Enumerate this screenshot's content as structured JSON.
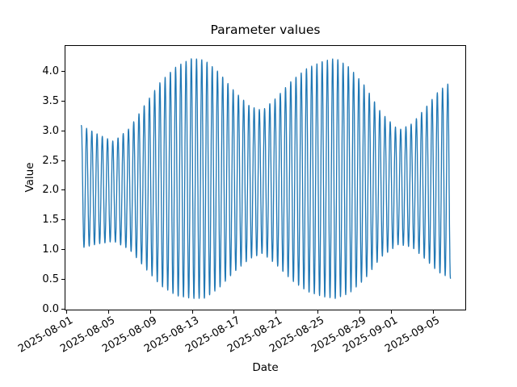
{
  "chart_data": {
    "type": "line",
    "title": "Parameter values",
    "xlabel": "Date",
    "ylabel": "Value",
    "grid": false,
    "legend": false,
    "line_color": "#1f77b4",
    "background_color": "#ffffff",
    "x_axis": {
      "kind": "date",
      "epoch_date": "2025-08-01",
      "xlim_days": [
        -0.2,
        38.15
      ],
      "tick_label_rotation_deg": 30,
      "ticks": [
        {
          "day": 0,
          "label": "2025-08-01"
        },
        {
          "day": 4,
          "label": "2025-08-05"
        },
        {
          "day": 8,
          "label": "2025-08-09"
        },
        {
          "day": 12,
          "label": "2025-08-13"
        },
        {
          "day": 16,
          "label": "2025-08-17"
        },
        {
          "day": 20,
          "label": "2025-08-21"
        },
        {
          "day": 24,
          "label": "2025-08-25"
        },
        {
          "day": 28,
          "label": "2025-08-29"
        },
        {
          "day": 31,
          "label": "2025-09-01"
        },
        {
          "day": 35,
          "label": "2025-09-05"
        }
      ]
    },
    "y_axis": {
      "ylim": [
        -0.02,
        4.44
      ],
      "ticks": [
        {
          "value": 0.0,
          "label": "0.0"
        },
        {
          "value": 0.5,
          "label": "0.5"
        },
        {
          "value": 1.0,
          "label": "1.0"
        },
        {
          "value": 1.5,
          "label": "1.5"
        },
        {
          "value": 2.0,
          "label": "2.0"
        },
        {
          "value": 2.5,
          "label": "2.5"
        },
        {
          "value": 3.0,
          "label": "3.0"
        },
        {
          "value": 3.5,
          "label": "3.5"
        },
        {
          "value": 4.0,
          "label": "4.0"
        }
      ]
    },
    "series": [
      {
        "name": "parameter values",
        "model": "amplitude-modulated sine: value(t) = center(t) + amp(t) * cos(2*pi*(t - t_start)/carrier_period), t in days after 2025-08-01",
        "t_start_day": 1.4,
        "t_end_day": 36.65,
        "sample_step_day": 0.0125,
        "carrier_period_days": 0.5,
        "center_keypoints_day_value": [
          [
            1.4,
            2.06
          ],
          [
            4.5,
            1.98
          ],
          [
            12.0,
            2.2
          ],
          [
            17.5,
            2.13
          ],
          [
            25.7,
            2.2
          ],
          [
            31.7,
            2.05
          ],
          [
            36.65,
            2.17
          ]
        ],
        "amplitude_keypoints_day_value": [
          [
            1.4,
            1.03
          ],
          [
            3.0,
            0.92
          ],
          [
            4.5,
            0.84
          ],
          [
            6.0,
            1.02
          ],
          [
            7.5,
            1.38
          ],
          [
            9.0,
            1.72
          ],
          [
            10.5,
            1.93
          ],
          [
            12.0,
            2.02
          ],
          [
            13.2,
            2.0
          ],
          [
            14.5,
            1.82
          ],
          [
            16.0,
            1.52
          ],
          [
            17.5,
            1.28
          ],
          [
            18.7,
            1.2
          ],
          [
            20.0,
            1.4
          ],
          [
            21.5,
            1.68
          ],
          [
            23.0,
            1.88
          ],
          [
            24.5,
            1.98
          ],
          [
            25.7,
            2.02
          ],
          [
            27.0,
            1.9
          ],
          [
            28.5,
            1.62
          ],
          [
            30.0,
            1.22
          ],
          [
            31.7,
            0.96
          ],
          [
            33.0,
            1.04
          ],
          [
            34.3,
            1.28
          ],
          [
            35.5,
            1.52
          ],
          [
            36.65,
            1.65
          ]
        ],
        "value_range_observed": [
          0.18,
          4.22
        ],
        "start_value": 3.09,
        "end_value": 0.52
      }
    ]
  }
}
